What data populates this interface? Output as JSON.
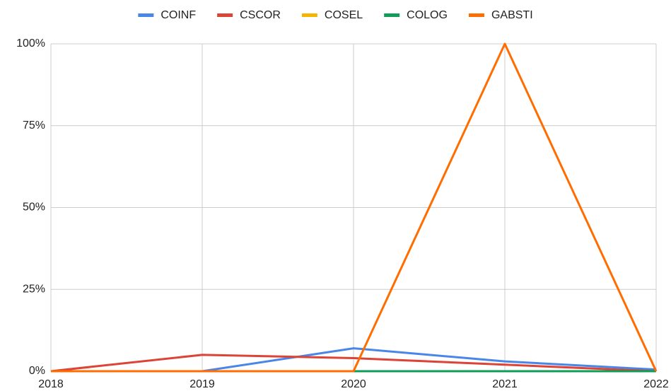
{
  "chart_data": {
    "type": "line",
    "x": [
      2018,
      2019,
      2020,
      2021,
      2022
    ],
    "xlim": [
      2018,
      2022
    ],
    "xticks": [
      2018,
      2019,
      2020,
      2021,
      2022
    ],
    "ylim": [
      0,
      100
    ],
    "yticks": [
      {
        "value": 0,
        "label": "0%"
      },
      {
        "value": 25,
        "label": "25%"
      },
      {
        "value": 50,
        "label": "50%"
      },
      {
        "value": 75,
        "label": "75%"
      },
      {
        "value": 100,
        "label": "100%"
      }
    ],
    "grid": true,
    "legend": "top",
    "series": [
      {
        "name": "COINF",
        "color": "#4a86e8",
        "values": [
          0,
          0,
          7,
          3,
          0.5
        ]
      },
      {
        "name": "CSCOR",
        "color": "#db4437",
        "values": [
          0,
          5,
          4,
          2,
          0
        ]
      },
      {
        "name": "COSEL",
        "color": "#f4b400",
        "values": [
          0,
          0,
          0,
          0,
          0
        ]
      },
      {
        "name": "COLOG",
        "color": "#0f9d58",
        "values": [
          0,
          0,
          0,
          0,
          0
        ]
      },
      {
        "name": "GABSTI",
        "color": "#ff6d01",
        "values": [
          0,
          0,
          0,
          100,
          0
        ]
      }
    ]
  }
}
